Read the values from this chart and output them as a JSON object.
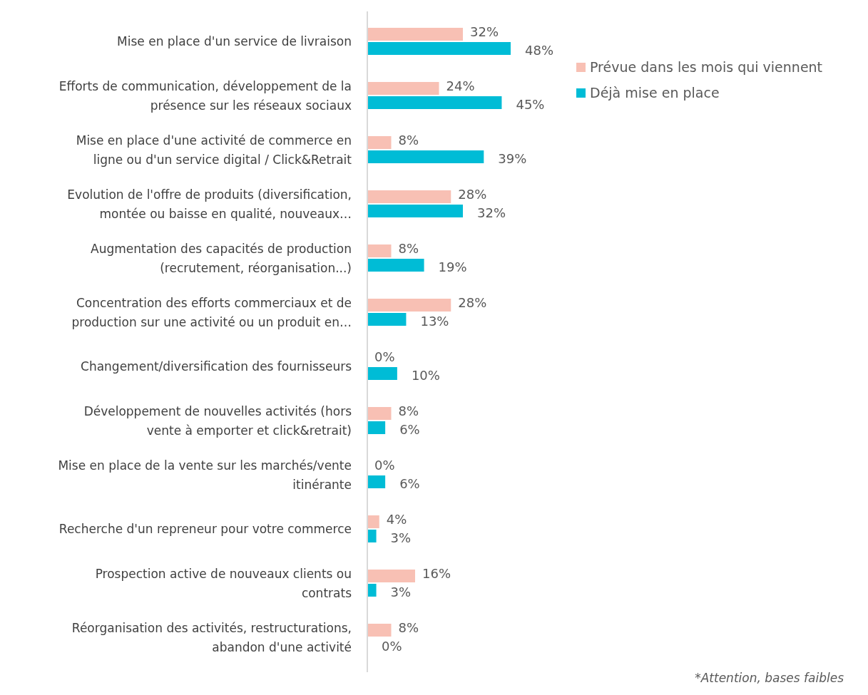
{
  "chart_data": {
    "type": "bar",
    "orientation": "horizontal",
    "legend": "top right",
    "categories": [
      "Mise en place d'un service de livraison",
      "Efforts de communication, développement de la\nprésence sur les réseaux sociaux",
      "Mise en place d'une activité de commerce en\nligne ou d'un service digital / Click&Retrait",
      "Evolution de l'offre de produits (diversification,\nmontée ou baisse en qualité, nouveaux…",
      "Augmentation des capacités de production\n(recrutement, réorganisation...)",
      "Concentration des efforts commerciaux et de\nproduction sur une activité ou un produit en…",
      "Changement/diversification des fournisseurs",
      "Développement de nouvelles activités (hors\nvente à emporter et click&retrait)",
      "Mise en place de la vente sur les marchés/vente\nitinérante",
      "Recherche d'un repreneur pour votre commerce",
      "Prospection active de nouveaux clients ou\ncontrats",
      "Réorganisation des activités, restructurations,\nabandon d'une activité"
    ],
    "series": [
      {
        "name": "Prévue dans les mois qui viennent",
        "color": "#f8c0b4",
        "values": [
          32,
          24,
          8,
          28,
          8,
          28,
          0,
          8,
          0,
          4,
          16,
          8
        ],
        "value_labels": [
          "32%",
          "24%",
          "8%",
          "28%",
          "8%",
          "28%",
          "0%",
          "8%",
          "0%",
          "4%",
          "16%",
          "8%"
        ]
      },
      {
        "name": "Déjà mise en place",
        "color": "#00bcd6",
        "values": [
          48,
          45,
          39,
          32,
          19,
          13,
          10,
          6,
          6,
          3,
          3,
          0
        ],
        "value_labels": [
          "48%",
          "45%",
          "39%",
          "32%",
          "19%",
          "13%",
          "10%",
          "6%",
          "6%",
          "3%",
          "3%",
          "0%"
        ]
      }
    ],
    "annotations": [
      "*Attention, bases faibles"
    ]
  }
}
